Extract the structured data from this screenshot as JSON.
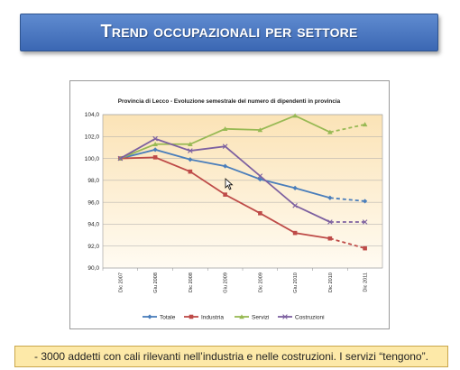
{
  "slide": {
    "title": "Trend occupazionali per settore",
    "note": "- 3000 addetti con cali rilevanti nell’industria e nelle costruzioni. I servizi “tengono”."
  },
  "colors": {
    "title_bg": "#4a78c2",
    "plot_bg_top": "#fbe6bf",
    "plot_bg_bottom": "#fffaf0",
    "note_bg": "#fde9a8"
  },
  "chart_data": {
    "type": "line",
    "title": "Provincia di Lecco - Evoluzione semestrale del numero di dipendenti in provincia",
    "categories": [
      "Dic 2007",
      "Giu 2008",
      "Dic 2008",
      "Giu 2009",
      "Dic 2009",
      "Giu 2010",
      "Dic 2010",
      "Dic 2011"
    ],
    "ylim": [
      90.0,
      104.0
    ],
    "yticks": [
      "90,0",
      "92,0",
      "94,0",
      "96,0",
      "98,0",
      "100,0",
      "102,0",
      "104,0"
    ],
    "grid": true,
    "legend": "bottom",
    "dashed_from_index": 6,
    "series": [
      {
        "name": "Totale",
        "color": "#4a7ebb",
        "marker": "diamond",
        "values": [
          100.0,
          100.8,
          99.9,
          99.3,
          98.1,
          97.3,
          96.4,
          96.1
        ]
      },
      {
        "name": "Industria",
        "color": "#be4b48",
        "marker": "square",
        "values": [
          100.0,
          100.1,
          98.8,
          96.7,
          95.0,
          93.2,
          92.7,
          91.8
        ]
      },
      {
        "name": "Servizi",
        "color": "#98b954",
        "marker": "triangle",
        "values": [
          100.0,
          101.3,
          101.3,
          102.7,
          102.6,
          103.9,
          102.4,
          103.1
        ]
      },
      {
        "name": "Costruzioni",
        "color": "#7d60a0",
        "marker": "x",
        "values": [
          100.0,
          101.8,
          100.7,
          101.1,
          98.4,
          95.7,
          94.2,
          94.2
        ]
      }
    ]
  }
}
